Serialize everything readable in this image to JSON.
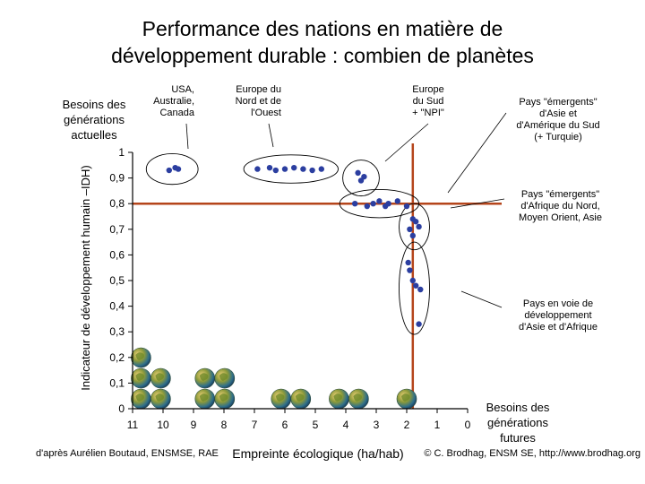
{
  "title_line1": "Performance des nations en matière de",
  "title_line2": "développement durable : combien de planètes",
  "chart_data": {
    "type": "scatter",
    "xlabel": "Empreinte écologique (ha/hab)",
    "ylabel": "Indicateur de développement humain –IDH)",
    "x_reversed": true,
    "xlim": [
      11,
      0
    ],
    "ylim": [
      0,
      1
    ],
    "x_ticks": [
      "11",
      "10",
      "9",
      "8",
      "7",
      "6",
      "5",
      "4",
      "3",
      "2",
      "1",
      "0"
    ],
    "y_ticks": [
      "0",
      "0,1",
      "0,2",
      "0,3",
      "0,4",
      "0,5",
      "0,6",
      "0,7",
      "0,8",
      "0,9",
      "1"
    ],
    "reference_lines": {
      "x": 1.8,
      "y": 0.8
    },
    "point_color": "#2b3ea0",
    "reference_line_color": "#b5451b",
    "points": [
      {
        "x": 9.8,
        "y": 0.93
      },
      {
        "x": 9.6,
        "y": 0.94
      },
      {
        "x": 9.5,
        "y": 0.935
      },
      {
        "x": 6.9,
        "y": 0.935
      },
      {
        "x": 6.5,
        "y": 0.94
      },
      {
        "x": 6.3,
        "y": 0.93
      },
      {
        "x": 6.0,
        "y": 0.935
      },
      {
        "x": 5.7,
        "y": 0.94
      },
      {
        "x": 5.4,
        "y": 0.935
      },
      {
        "x": 5.1,
        "y": 0.93
      },
      {
        "x": 4.8,
        "y": 0.935
      },
      {
        "x": 3.6,
        "y": 0.92
      },
      {
        "x": 3.5,
        "y": 0.89
      },
      {
        "x": 3.4,
        "y": 0.905
      },
      {
        "x": 3.7,
        "y": 0.8
      },
      {
        "x": 3.3,
        "y": 0.79
      },
      {
        "x": 3.1,
        "y": 0.8
      },
      {
        "x": 2.9,
        "y": 0.81
      },
      {
        "x": 2.7,
        "y": 0.79
      },
      {
        "x": 2.6,
        "y": 0.8
      },
      {
        "x": 2.3,
        "y": 0.81
      },
      {
        "x": 2.0,
        "y": 0.79
      },
      {
        "x": 1.8,
        "y": 0.74
      },
      {
        "x": 1.7,
        "y": 0.73
      },
      {
        "x": 1.6,
        "y": 0.71
      },
      {
        "x": 1.9,
        "y": 0.7
      },
      {
        "x": 1.8,
        "y": 0.675
      },
      {
        "x": 1.95,
        "y": 0.57
      },
      {
        "x": 1.9,
        "y": 0.54
      },
      {
        "x": 1.8,
        "y": 0.5
      },
      {
        "x": 1.7,
        "y": 0.48
      },
      {
        "x": 1.55,
        "y": 0.465
      },
      {
        "x": 1.6,
        "y": 0.33
      }
    ],
    "groups": [
      {
        "label": "USA,\nAustralie,\nCanada",
        "cx": 9.7,
        "cy": 0.935,
        "rx": 0.85,
        "ry": 0.06
      },
      {
        "label": "Europe du\nNord et de\nl'Ouest",
        "cx": 5.8,
        "cy": 0.935,
        "rx": 1.55,
        "ry": 0.055
      },
      {
        "label": "Europe\ndu Sud\n+ \"NPI\"",
        "cx": 3.5,
        "cy": 0.9,
        "rx": 0.6,
        "ry": 0.07
      },
      {
        "label": "Pays \"émergents\"\nd'Asie et\nd'Amérique du Sud\n(+ Turquie)",
        "cx": 2.9,
        "cy": 0.8,
        "rx": 1.3,
        "ry": 0.055
      },
      {
        "label": "Pays \"émergents\"\nd'Afrique du Nord,\nMoyen Orient, Asie",
        "cx": 1.75,
        "cy": 0.71,
        "rx": 0.5,
        "ry": 0.09
      },
      {
        "label": "Pays en voie de\ndéveloppement\nd'Asie et d'Afrique",
        "cx": 1.75,
        "cy": 0.47,
        "rx": 0.5,
        "ry": 0.18
      }
    ],
    "left_note": "Besoins des\ngénérations\nactuelles",
    "right_note": "Besoins des\ngénérations\nfutures",
    "planet_stacks": [
      {
        "x": 10.4,
        "count": 5
      },
      {
        "x": 8.3,
        "count": 4
      },
      {
        "x": 5.8,
        "count": 2
      },
      {
        "x": 3.9,
        "count": 2
      },
      {
        "x": 2.0,
        "count": 1
      }
    ]
  },
  "credit_left": "d'après Aurélien Boutaud, ENSMSE, RAE",
  "credit_right": "© C. Brodhag, ENSM SE, http://www.brodhag.org"
}
